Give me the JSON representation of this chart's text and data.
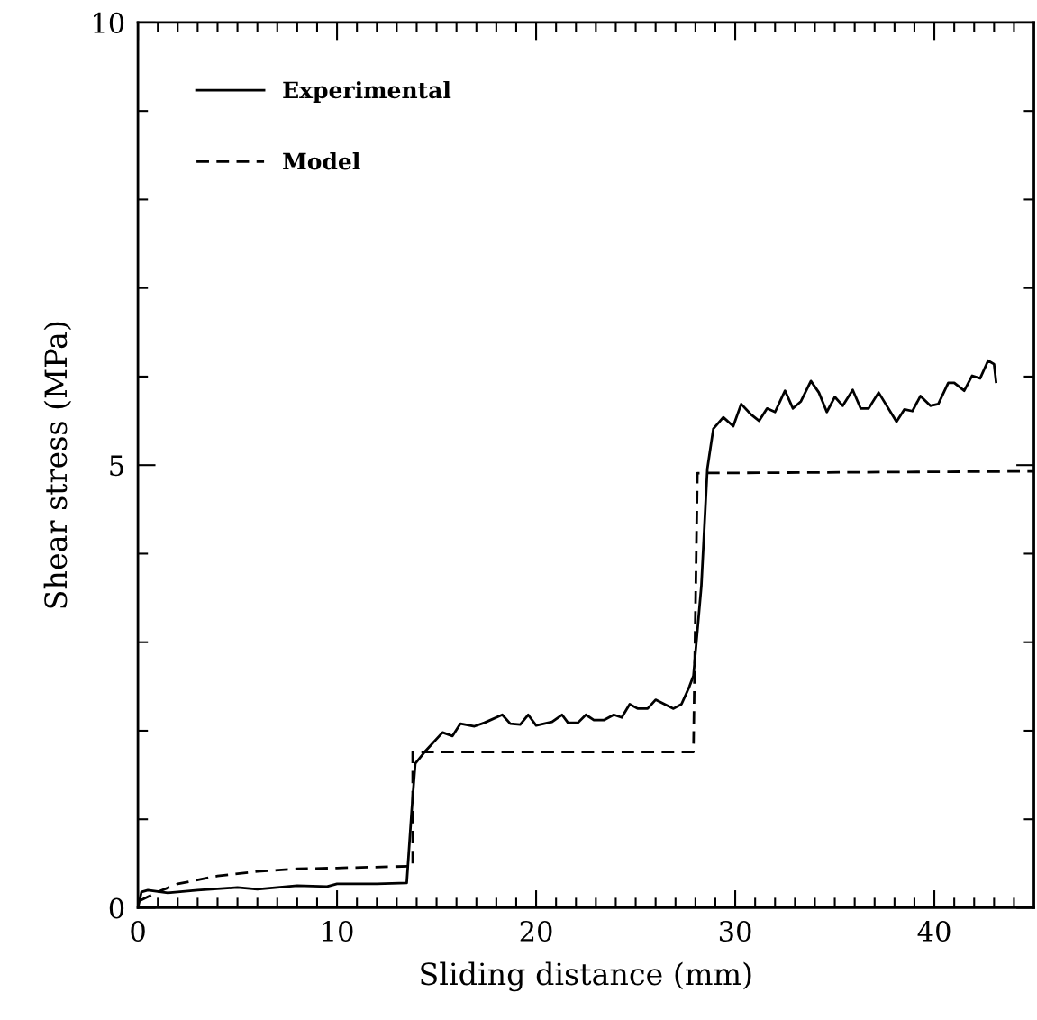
{
  "chart_data": {
    "type": "line",
    "xlabel": "Sliding distance (mm)",
    "ylabel": "Shear stress (MPa)",
    "xlim": [
      0,
      45
    ],
    "ylim": [
      0,
      10
    ],
    "xticks": [
      0,
      {
        "value": 1,
        "label": null
      },
      {
        "value": 2,
        "label": null
      },
      {
        "value": 3,
        "label": null
      },
      {
        "value": 4,
        "label": null
      },
      {
        "value": 5,
        "label": null
      },
      {
        "value": 6,
        "label": null
      },
      {
        "value": 7,
        "label": null
      },
      {
        "value": 8,
        "label": null
      },
      {
        "value": 9,
        "label": null
      },
      10,
      {
        "value": 11,
        "label": null
      },
      {
        "value": 12,
        "label": null
      },
      {
        "value": 13,
        "label": null
      },
      {
        "value": 14,
        "label": null
      },
      {
        "value": 15,
        "label": null
      },
      {
        "value": 16,
        "label": null
      },
      {
        "value": 17,
        "label": null
      },
      {
        "value": 18,
        "label": null
      },
      {
        "value": 19,
        "label": null
      },
      20,
      {
        "value": 21,
        "label": null
      },
      {
        "value": 22,
        "label": null
      },
      {
        "value": 23,
        "label": null
      },
      {
        "value": 24,
        "label": null
      },
      {
        "value": 25,
        "label": null
      },
      {
        "value": 26,
        "label": null
      },
      {
        "value": 27,
        "label": null
      },
      {
        "value": 28,
        "label": null
      },
      {
        "value": 29,
        "label": null
      },
      30,
      {
        "value": 31,
        "label": null
      },
      {
        "value": 32,
        "label": null
      },
      {
        "value": 33,
        "label": null
      },
      {
        "value": 34,
        "label": null
      },
      {
        "value": 35,
        "label": null
      },
      {
        "value": 36,
        "label": null
      },
      {
        "value": 37,
        "label": null
      },
      {
        "value": 38,
        "label": null
      },
      {
        "value": 39,
        "label": null
      },
      40,
      {
        "value": 41,
        "label": null
      },
      {
        "value": 42,
        "label": null
      },
      {
        "value": 43,
        "label": null
      },
      {
        "value": 44,
        "label": null
      }
    ],
    "yticks": [
      0,
      {
        "value": 1,
        "label": null
      },
      {
        "value": 2,
        "label": null
      },
      {
        "value": 3,
        "label": null
      },
      {
        "value": 4,
        "label": null
      },
      5,
      {
        "value": 6,
        "label": null
      },
      {
        "value": 7,
        "label": null
      },
      {
        "value": 8,
        "label": null
      },
      {
        "value": 9,
        "label": null
      },
      10
    ],
    "grid": false,
    "legend": "top left",
    "series": [
      {
        "name": "Experimental",
        "color": "#000000",
        "line_style": "solid",
        "x": [
          0,
          0.18,
          0.5,
          1.5,
          3,
          5,
          6,
          8,
          9.5,
          10,
          12,
          13.5,
          13.75,
          13.93,
          14.4,
          15.3,
          15.8,
          16.2,
          16.9,
          17.4,
          18.3,
          18.7,
          19.2,
          19.6,
          20.0,
          20.8,
          21.3,
          21.6,
          22.1,
          22.5,
          22.9,
          23.4,
          23.9,
          24.3,
          24.7,
          25.1,
          25.6,
          26.0,
          26.9,
          27.3,
          27.7,
          27.9,
          28.3,
          28.6,
          28.9,
          29.4,
          29.9,
          30.3,
          30.8,
          31.2,
          31.6,
          32.0,
          32.5,
          32.9,
          33.3,
          33.8,
          34.2,
          34.6,
          35.0,
          35.4,
          35.9,
          36.3,
          36.7,
          37.2,
          38.1,
          38.5,
          38.9,
          39.3,
          39.8,
          40.2,
          40.7,
          41.0,
          41.5,
          41.9,
          42.3,
          42.7,
          43.0,
          43.1
        ],
        "values": [
          0,
          0.18,
          0.2,
          0.17,
          0.2,
          0.23,
          0.21,
          0.25,
          0.24,
          0.27,
          0.27,
          0.28,
          1.1,
          1.63,
          1.76,
          1.98,
          1.94,
          2.08,
          2.05,
          2.09,
          2.18,
          2.08,
          2.07,
          2.18,
          2.06,
          2.1,
          2.18,
          2.09,
          2.09,
          2.18,
          2.12,
          2.12,
          2.18,
          2.15,
          2.3,
          2.25,
          2.25,
          2.35,
          2.25,
          2.3,
          2.5,
          2.62,
          3.64,
          4.96,
          5.41,
          5.54,
          5.44,
          5.69,
          5.57,
          5.5,
          5.64,
          5.6,
          5.84,
          5.64,
          5.72,
          5.95,
          5.82,
          5.6,
          5.77,
          5.67,
          5.85,
          5.64,
          5.64,
          5.82,
          5.49,
          5.63,
          5.61,
          5.78,
          5.67,
          5.69,
          5.93,
          5.93,
          5.84,
          6.01,
          5.98,
          6.18,
          6.14,
          5.94
        ]
      },
      {
        "name": "Model",
        "color": "#000000",
        "line_style": "dashed",
        "x": [
          0.1,
          1,
          2,
          4,
          6,
          8,
          10,
          13.8,
          13.8,
          27.9,
          28.1,
          45
        ],
        "values": [
          0.08,
          0.18,
          0.27,
          0.36,
          0.41,
          0.44,
          0.45,
          0.47,
          1.76,
          1.76,
          4.91,
          4.93
        ]
      }
    ]
  }
}
